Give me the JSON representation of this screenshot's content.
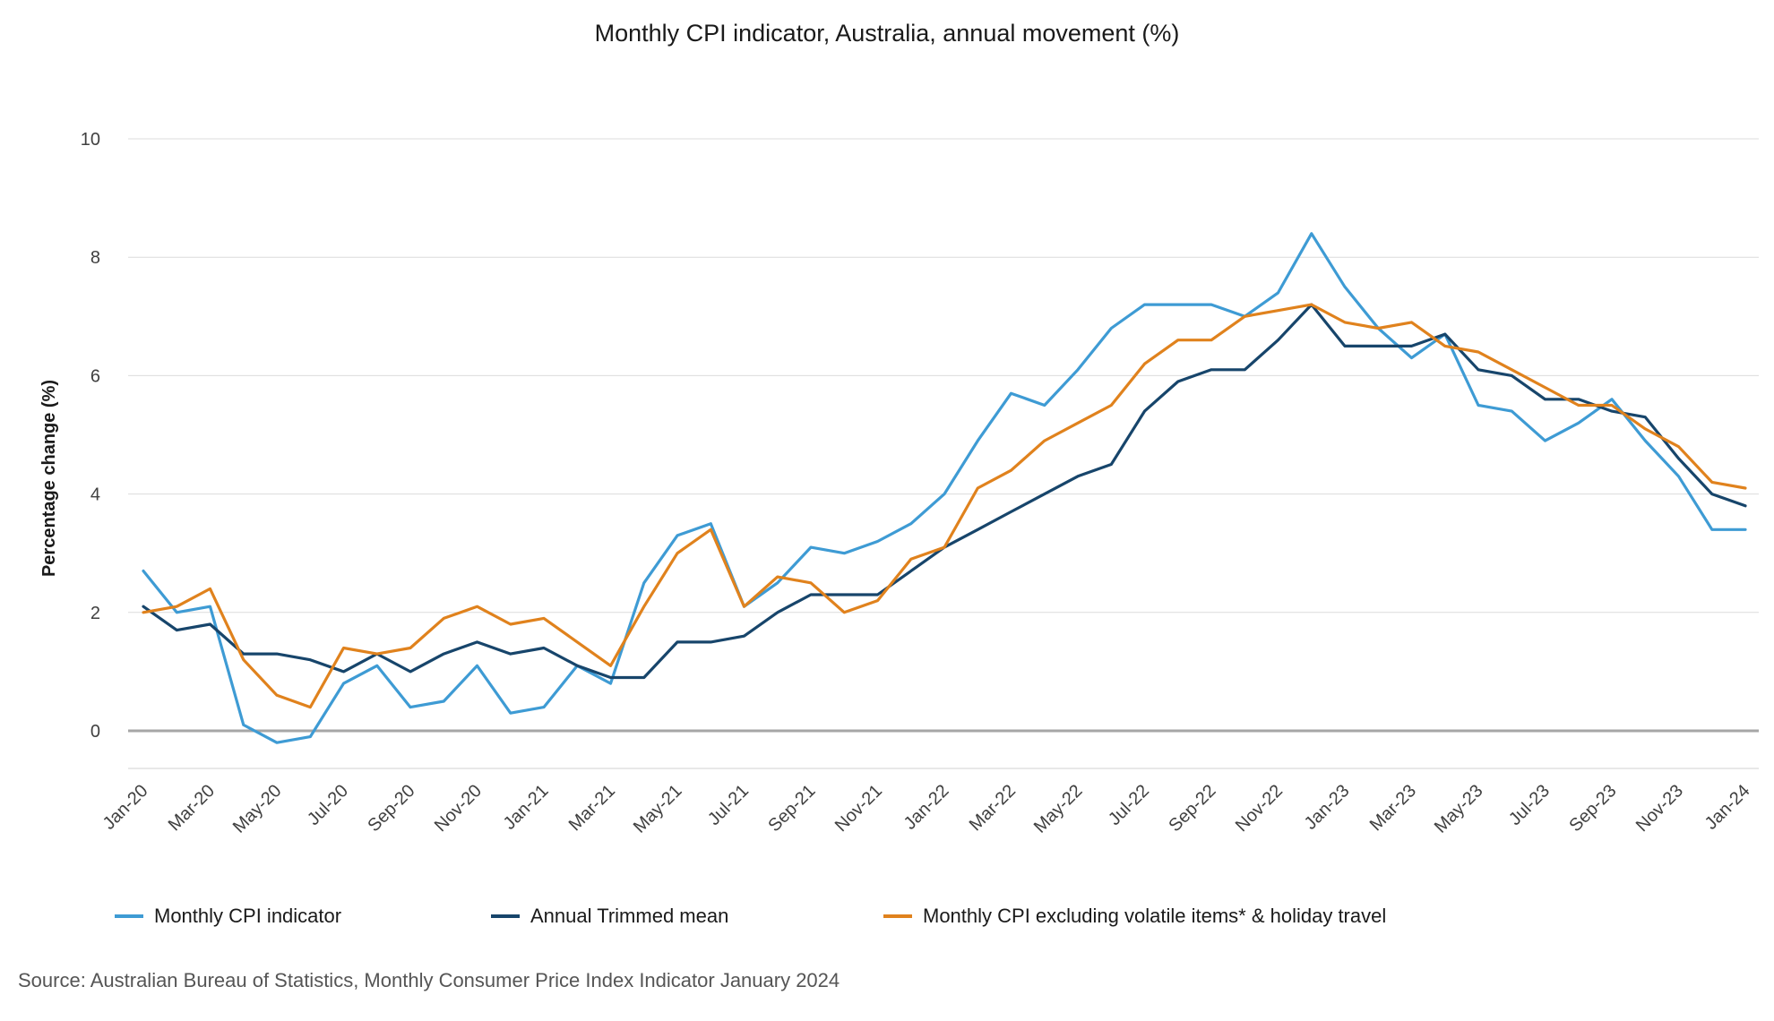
{
  "chart_data": {
    "type": "line",
    "title": "Monthly CPI indicator, Australia, annual movement (%)",
    "xlabel": "",
    "ylabel": "Percentage change (%)",
    "ylim": [
      -0.6,
      10
    ],
    "yticks": [
      0,
      2,
      4,
      6,
      8,
      10
    ],
    "grid": true,
    "legend_position": "bottom",
    "categories": [
      "Jan-20",
      "Feb-20",
      "Mar-20",
      "Apr-20",
      "May-20",
      "Jun-20",
      "Jul-20",
      "Aug-20",
      "Sep-20",
      "Oct-20",
      "Nov-20",
      "Dec-20",
      "Jan-21",
      "Feb-21",
      "Mar-21",
      "Apr-21",
      "May-21",
      "Jun-21",
      "Jul-21",
      "Aug-21",
      "Sep-21",
      "Oct-21",
      "Nov-21",
      "Dec-21",
      "Jan-22",
      "Feb-22",
      "Mar-22",
      "Apr-22",
      "May-22",
      "Jun-22",
      "Jul-22",
      "Aug-22",
      "Sep-22",
      "Oct-22",
      "Nov-22",
      "Dec-22",
      "Jan-23",
      "Feb-23",
      "Mar-23",
      "Apr-23",
      "May-23",
      "Jun-23",
      "Jul-23",
      "Aug-23",
      "Sep-23",
      "Oct-23",
      "Nov-23",
      "Dec-23",
      "Jan-24"
    ],
    "tick_labels": [
      "Jan-20",
      "Mar-20",
      "May-20",
      "Jul-20",
      "Sep-20",
      "Nov-20",
      "Jan-21",
      "Mar-21",
      "May-21",
      "Jul-21",
      "Sep-21",
      "Nov-21",
      "Jan-22",
      "Mar-22",
      "May-22",
      "Jul-22",
      "Sep-22",
      "Nov-22",
      "Jan-23",
      "Mar-23",
      "May-23",
      "Jul-23",
      "Sep-23",
      "Nov-23",
      "Jan-24"
    ],
    "series": [
      {
        "name": "Monthly CPI indicator",
        "color": "#3e9bd4",
        "values": [
          2.7,
          2.0,
          2.1,
          0.1,
          -0.2,
          -0.1,
          0.8,
          1.1,
          0.4,
          0.5,
          1.1,
          0.3,
          0.4,
          1.1,
          0.8,
          2.5,
          3.3,
          3.5,
          2.1,
          2.5,
          3.1,
          3.0,
          3.2,
          3.5,
          4.0,
          4.9,
          5.7,
          5.5,
          6.1,
          6.8,
          7.2,
          7.2,
          7.2,
          7.0,
          7.4,
          8.4,
          7.5,
          6.8,
          6.3,
          6.7,
          5.5,
          5.4,
          4.9,
          5.2,
          5.6,
          4.9,
          4.3,
          3.4,
          3.4
        ]
      },
      {
        "name": "Annual Trimmed mean",
        "color": "#17456b",
        "values": [
          2.1,
          1.7,
          1.8,
          1.3,
          1.3,
          1.2,
          1.0,
          1.3,
          1.0,
          1.3,
          1.5,
          1.3,
          1.4,
          1.1,
          0.9,
          0.9,
          1.5,
          1.5,
          1.6,
          2.0,
          2.3,
          2.3,
          2.3,
          2.7,
          3.1,
          3.4,
          3.7,
          4.0,
          4.3,
          4.5,
          5.4,
          5.9,
          6.1,
          6.1,
          6.6,
          7.2,
          6.5,
          6.5,
          6.5,
          6.7,
          6.1,
          6.0,
          5.6,
          5.6,
          5.4,
          5.3,
          4.6,
          4.0,
          3.8
        ]
      },
      {
        "name": "Monthly CPI excluding volatile items* & holiday travel",
        "color": "#e0821d",
        "values": [
          2.0,
          2.1,
          2.4,
          1.2,
          0.6,
          0.4,
          1.4,
          1.3,
          1.4,
          1.9,
          2.1,
          1.8,
          1.9,
          1.5,
          1.1,
          2.1,
          3.0,
          3.4,
          2.1,
          2.6,
          2.5,
          2.0,
          2.2,
          2.9,
          3.1,
          4.1,
          4.4,
          4.9,
          5.2,
          5.5,
          6.2,
          6.6,
          6.6,
          7.0,
          7.1,
          7.2,
          6.9,
          6.8,
          6.9,
          6.5,
          6.4,
          6.1,
          5.8,
          5.5,
          5.5,
          5.1,
          4.8,
          4.2,
          4.1
        ]
      }
    ]
  },
  "source": "Source: Australian Bureau of Statistics, Monthly Consumer Price Index Indicator January 2024"
}
